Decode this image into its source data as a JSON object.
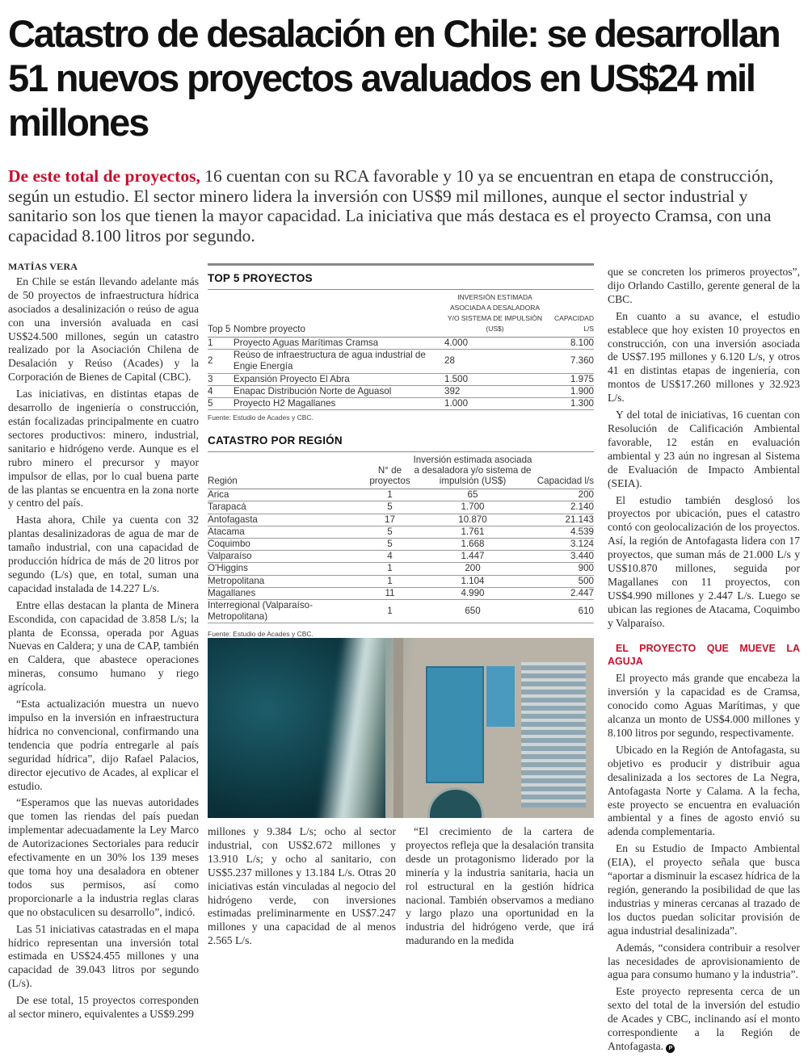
{
  "headline": "Catastro de desalación en Chile: se desarrollan 51 nuevos proyectos avaluados en US$24 mil millones",
  "lead": {
    "kicker": "De este total de proyectos,",
    "text": " 16 cuentan con su RCA favorable y 10 ya se encuentran en etapa de construcción, según un estudio. El sector minero lidera la inversión con US$9 mil millones, aunque el sector industrial y sanitario son los que tienen la mayor capacidad. La iniciativa que más destaca es el proyecto Cramsa, con una capacidad 8.100 litros por segundo."
  },
  "byline": "MATÍAS VERA",
  "col1": [
    "En Chile se están llevando adelante más de 50 proyectos de infraestructura hídrica asociados a desalinización o reúso de agua con una inversión avaluada en casi US$24.500 millones, según un catastro realizado por la Asociación Chilena de Desalación y Reúso (Acades) y la Corporación de Bienes de Capital (CBC).",
    "Las iniciativas, en distintas etapas de desarrollo de ingeniería o construcción, están focalizadas principalmente en cuatro sectores productivos: minero, industrial, sanitario e hidrógeno verde. Aunque es el rubro minero el precursor y mayor impulsor de ellas, por lo cual buena parte de las plantas se encuentra en la zona norte y centro del país.",
    "Hasta ahora, Chile ya cuenta con 32 plantas desalinizadoras de agua de mar de tamaño industrial, con una capacidad de producción hídrica de más de 20 litros por segundo (L/s) que, en total, suman una capacidad instalada de 14.227 L/s.",
    "Entre ellas destacan la planta de Minera Escondida, con capacidad de 3.858 L/s; la planta de Econssa, operada por Aguas Nuevas en Caldera; y una de CAP, también en Caldera, que abastece operaciones mineras, consumo humano y riego agrícola.",
    "“Esta actualización muestra un nuevo impulso en la inversión en infraestructura hídrica no convencional, confirmando una tendencia que podría entregarle al país seguridad hídrica”, dijo Rafael Palacios, director ejecutivo de Acades, al explicar el estudio.",
    "“Esperamos que las nuevas autoridades que tomen las riendas del país puedan implementar adecuadamente la Ley Marco de Autorizaciones Sectoriales para reducir efectivamente en un 30% los 139 meses que toma hoy una desaladora en obtener todos sus permisos, así como proporcionarle a la industria reglas claras que no obstaculicen su desarrollo”, indicó.",
    "Las 51 iniciativas catastradas en el mapa hídrico representan una inversión total estimada en US$24.455 millones y una capacidad de 39.043 litros por segundo (L/s).",
    "De ese total, 15 proyectos corresponden al sector minero, equivalentes a US$9.299"
  ],
  "col2a": "millones y 9.384 L/s; ocho al sector industrial, con US$2.672 millones y 13.910 L/s; y ocho al sanitario, con US$5.237 millones y 13.184 L/s. Otras 20 iniciativas están vinculadas al negocio del hidrógeno verde, con inversiones estimadas preliminarmente en US$7.247 millones y una capacidad de al menos 2.565 L/s.",
  "col2b": "“El crecimiento de la cartera de proyectos refleja que la desalación transita desde un protagonismo liderado por la minería y la industria sanitaria, hacia un rol estructural en la gestión hídrica nacional. También observamos a mediano y largo plazo una oportunidad en la industria del hidrógeno verde, que irá madurando en la medida",
  "col3": [
    "que se concreten los primeros proyectos”, dijo Orlando Castillo, gerente general de la CBC.",
    "En cuanto a su avance, el estudio establece que hoy existen 10 proyectos en construcción, con una inversión asociada de US$7.195 millones y 6.120 L/s, y otros 41 en distintas etapas de ingeniería, con montos de US$17.260 millones y 32.923 L/s.",
    "Y del total de iniciativas, 16 cuentan con Resolución de Calificación Ambiental favorable, 12 están en evaluación ambiental y 23 aún no ingresan al Sistema de Evaluación de Impacto Ambiental (SEIA).",
    "El estudio también desglosó los proyectos por ubicación, pues el catastro contó con geolocalización de los proyectos. Así, la región de Antofagasta lidera con 17 proyectos, que suman más de 21.000 L/s y US$10.870 millones, seguida por Magallanes con 11 proyectos, con US$4.990 millones y 2.447 L/s. Luego se ubican las regiones de Atacama, Coquimbo y Valparaíso."
  ],
  "subhead": "EL PROYECTO QUE MUEVE LA AGUJA",
  "col3b": [
    "El proyecto más grande que encabeza la inversión y la capacidad es de Cramsa, conocido como Aguas Marítimas, y que alcanza un monto de US$4.000 millones y 8.100 litros por segundo, respectivamente.",
    "Ubicado en la Región de Antofagasta, su objetivo es producir y distribuir agua desalinizada a los sectores de La Negra, Antofagasta Norte y Calama. A la fecha, este proyecto se encuentra en evaluación ambiental y a fines de agosto envió su adenda complementaria.",
    "En su Estudio de Impacto Ambiental (EIA), el proyecto señala que busca “aportar a disminuir la escasez hídrica de la región, generando la posibilidad de que las industrias y mineras cercanas al trazado de los ductos puedan solicitar provisión de agua industrial desalinizada”.",
    "Además, “considera contribuir a resolver las necesidades de aprovisionamiento de agua para consumo humano y la industria”.",
    "Este proyecto representa cerca de un sexto del total de la inversión del estudio de Acades y CBC, inclinando así el monto correspondiente a la Región de Antofagasta."
  ],
  "end_mark": "P",
  "top5": {
    "title": "TOP 5 PROYECTOS",
    "headers": [
      "Top 5",
      "Nombre proyecto",
      "Inversión estimada asociada a desaladora y/o sistema de impulsión (US$)",
      "Capacidad L/s"
    ],
    "rows": [
      [
        "1",
        "Proyecto Aguas Marítimas Cramsa",
        "4.000",
        "8.100"
      ],
      [
        "2",
        "Reúso de infraestructura de agua industrial de Engie Energía",
        "28",
        "7.360"
      ],
      [
        "3",
        "Expansión Proyecto El Abra",
        "1.500",
        "1.975"
      ],
      [
        "4",
        "Enapac Distribución Norte de Aguasol",
        "392",
        "1.900"
      ],
      [
        "5",
        "Proyecto H2 Magallanes",
        "1.000",
        "1.300"
      ]
    ],
    "source": "Fuente: Estudio de Acades y CBC."
  },
  "region": {
    "title": "CATASTRO POR REGIÓN",
    "headers": [
      "Región",
      "N° de proyectos",
      "Inversión estimada asociada a desaladora y/o sistema de impulsión (US$)",
      "Capacidad l/s"
    ],
    "rows": [
      [
        "Arica",
        "1",
        "65",
        "200"
      ],
      [
        "Tarapacá",
        "5",
        "1.700",
        "2.140"
      ],
      [
        "Antofagasta",
        "17",
        "10.870",
        "21.143"
      ],
      [
        "Atacama",
        "5",
        "1.761",
        "4.539"
      ],
      [
        "Coquimbo",
        "5",
        "1.668",
        "3.124"
      ],
      [
        "Valparaíso",
        "4",
        "1.447",
        "3.440"
      ],
      [
        "O'Higgins",
        "1",
        "200",
        "900"
      ],
      [
        "Metropolitana",
        "1",
        "1.104",
        "500"
      ],
      [
        "Magallanes",
        "11",
        "4.990",
        "2.447"
      ],
      [
        "Interregional (Valparaíso- Metropolitana)",
        "1",
        "650",
        "610"
      ]
    ],
    "source": "Fuente: Estudio de Acades y CBC."
  },
  "colors": {
    "accent": "#c8102e"
  }
}
